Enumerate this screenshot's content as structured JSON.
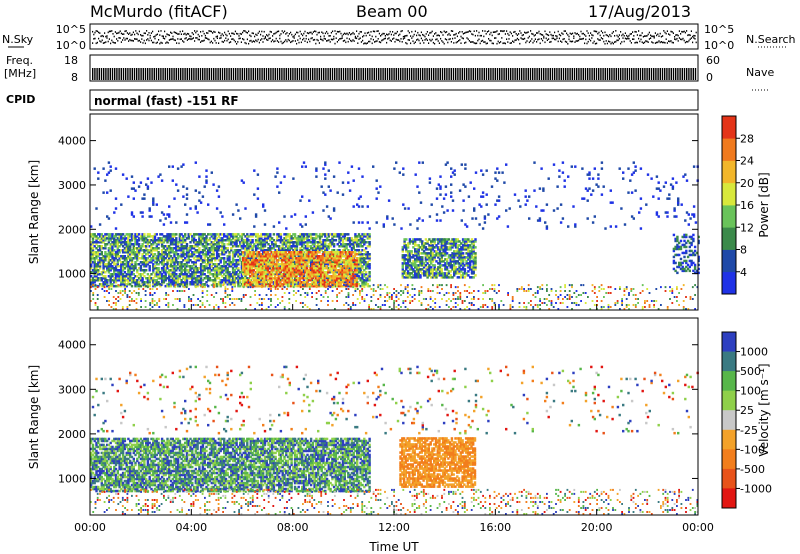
{
  "header": {
    "station": "McMurdo (fitACF)",
    "beam": "Beam 00",
    "date": "17/Aug/2013"
  },
  "strips": {
    "nsky_label": "N.Sky",
    "nsky_ticks": [
      "10^5",
      "10^0"
    ],
    "nsearch_label": "N.Search",
    "nsearch_ticks": [
      "10^5",
      "10^0"
    ],
    "freq_label": "Freq.",
    "freq_unit": "[MHz]",
    "freq_ticks": [
      "18",
      "8"
    ],
    "nave_label": "Nave",
    "nave_ticks": [
      "60",
      "0"
    ],
    "cpid_label": "CPID",
    "cpid_text": "normal (fast) -151 RF"
  },
  "chart_data": [
    {
      "type": "heatmap",
      "panel": "power",
      "ylabel": "Slant Range [km]",
      "ylim": [
        180,
        4600
      ],
      "yticks": [
        "1000",
        "2000",
        "3000",
        "4000"
      ],
      "xlim": [
        0,
        24
      ],
      "xticks": [
        "00:00",
        "04:00",
        "08:00",
        "12:00",
        "16:00",
        "20:00",
        "00:00"
      ],
      "colorbar": {
        "title": "Power [dB]",
        "ticks": [
          "4",
          "8",
          "12",
          "16",
          "20",
          "24",
          "28"
        ],
        "colors": [
          "#1f32e6",
          "#1f49a8",
          "#3b8a4a",
          "#69c35a",
          "#d8e83c",
          "#f2b62a",
          "#f07a1e",
          "#e43418"
        ]
      },
      "echo_regions": [
        {
          "t0": 0.0,
          "t1": 12.0,
          "r0": 700,
          "r1": 1900,
          "level": "medium"
        },
        {
          "t0": 6.0,
          "t1": 10.5,
          "r0": 700,
          "r1": 1500,
          "level": "high"
        },
        {
          "t0": 12.3,
          "t1": 15.2,
          "r0": 900,
          "r1": 1800,
          "level": "medium"
        },
        {
          "t0": 0.0,
          "t1": 24.0,
          "r0": 2000,
          "r1": 3500,
          "level": "sparse"
        },
        {
          "t0": 23.0,
          "t1": 24.0,
          "r0": 1000,
          "r1": 1900,
          "level": "low"
        }
      ]
    },
    {
      "type": "heatmap",
      "panel": "velocity",
      "ylabel": "Slant Range [km]",
      "ylim": [
        180,
        4600
      ],
      "yticks": [
        "1000",
        "2000",
        "3000",
        "4000"
      ],
      "xlabel": "Time UT",
      "xlim": [
        0,
        24
      ],
      "xticks": [
        "00:00",
        "04:00",
        "08:00",
        "12:00",
        "16:00",
        "20:00",
        "00:00"
      ],
      "colorbar": {
        "title": "Velocity [m s⁻¹]",
        "ticks": [
          "1000",
          "500",
          "100",
          "25",
          "-25",
          "-100",
          "-500",
          "-1000"
        ],
        "colors": [
          "#2d3fc0",
          "#3a7a82",
          "#57b64a",
          "#8fd04a",
          "#c8c8c8",
          "#f3a22a",
          "#f27e1c",
          "#e8531a",
          "#e21612"
        ]
      },
      "echo_regions": [
        {
          "t0": 0.0,
          "t1": 12.0,
          "r0": 700,
          "r1": 1900,
          "level": "mixed"
        },
        {
          "t0": 12.0,
          "t1": 15.2,
          "r0": 800,
          "r1": 1900,
          "level": "negative"
        },
        {
          "t0": 0.0,
          "t1": 24.0,
          "r0": 2000,
          "r1": 3500,
          "level": "sparse"
        }
      ]
    }
  ]
}
